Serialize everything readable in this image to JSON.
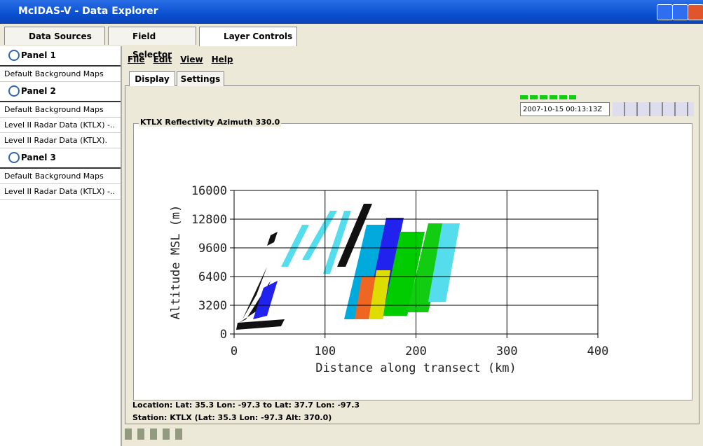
{
  "window": {
    "title": "McIDAS-V - Data Explorer"
  },
  "tabs": [
    "Data Sources",
    "Field Selector",
    "Layer Controls"
  ],
  "panels": [
    {
      "label": "Panel 1",
      "layers": [
        "Default Background Maps"
      ]
    },
    {
      "label": "Panel 2",
      "layers": [
        "Default Background Maps",
        "Level II Radar Data (KTLX) -..",
        "Level II Radar Data (KTLX)."
      ]
    },
    {
      "label": "Panel 3",
      "layers": [
        "Default Background Maps",
        "Level II Radar Data (KTLX) -.."
      ]
    }
  ],
  "menu": [
    "File",
    "Edit",
    "View",
    "Help"
  ],
  "subtabs": [
    "Display",
    "Settings"
  ],
  "time": "2007-10-15 00:13:13Z",
  "chart_data": {
    "type": "scatter",
    "title": "KTLX Reflectivity Azimuth 330.0",
    "x_label": "Distance along transect (km)",
    "y_label": "Altitude MSL (m)",
    "xlim": [
      0,
      400
    ],
    "xticks": [
      0,
      100,
      200,
      300,
      400
    ],
    "ylim": [
      0,
      16000
    ],
    "yticks": [
      0,
      3200,
      6400,
      9600,
      12800,
      16000
    ],
    "grid": true
  },
  "footer": [
    "Location: Lat: 35.3 Lon: -97.3  to  Lat: 37.7 Lon: -97.3",
    "Station: KTLX  (Lat: 35.3 Lon: -97.3 Alt: 370.0)"
  ]
}
